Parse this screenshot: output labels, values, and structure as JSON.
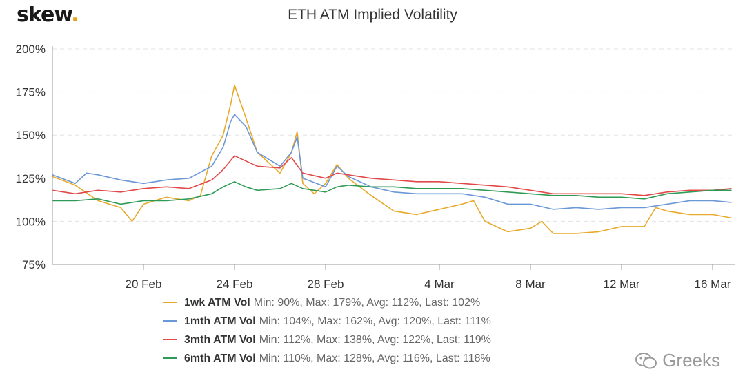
{
  "brand": {
    "name": "skew",
    "dot": "."
  },
  "watermark": {
    "text": "Greeks"
  },
  "chart_data": {
    "type": "line",
    "title": "ETH ATM Implied Volatility",
    "xlabel": "",
    "ylabel": "",
    "x_start": "2020-02-16",
    "x_end": "2020-03-17",
    "x_ticks": [
      {
        "date": "2020-02-20",
        "label": "20 Feb"
      },
      {
        "date": "2020-02-24",
        "label": "24 Feb"
      },
      {
        "date": "2020-02-28",
        "label": "28 Feb"
      },
      {
        "date": "2020-03-04",
        "label": "4 Mar"
      },
      {
        "date": "2020-03-08",
        "label": "8 Mar"
      },
      {
        "date": "2020-03-12",
        "label": "12 Mar"
      },
      {
        "date": "2020-03-16",
        "label": "16 Mar"
      }
    ],
    "y_ticks": [
      {
        "value": 75,
        "label": "75%"
      },
      {
        "value": 100,
        "label": "100%"
      },
      {
        "value": 125,
        "label": "125%"
      },
      {
        "value": 150,
        "label": "150%"
      },
      {
        "value": 175,
        "label": "175%"
      },
      {
        "value": 200,
        "label": "200%"
      }
    ],
    "ylim": [
      75,
      200
    ],
    "grid": true,
    "legend": "bottom",
    "series": [
      {
        "name": "1wk ATM Vol",
        "stats": "Min: 90%, Max: 179%, Avg: 112%, Last: 102%",
        "color": "#e8a92b",
        "points": [
          [
            "2020-02-16",
            126
          ],
          [
            "2020-02-17",
            121
          ],
          [
            "2020-02-18",
            112
          ],
          [
            "2020-02-19",
            108
          ],
          [
            "2020-02-19 12:00",
            100
          ],
          [
            "2020-02-20",
            110
          ],
          [
            "2020-02-21",
            114
          ],
          [
            "2020-02-22",
            112
          ],
          [
            "2020-02-22 12:00",
            115
          ],
          [
            "2020-02-23",
            138
          ],
          [
            "2020-02-23 12:00",
            150
          ],
          [
            "2020-02-23 20:00",
            168
          ],
          [
            "2020-02-24",
            179
          ],
          [
            "2020-02-24 12:00",
            160
          ],
          [
            "2020-02-25",
            140
          ],
          [
            "2020-02-25 12:00",
            134
          ],
          [
            "2020-02-26",
            128
          ],
          [
            "2020-02-26 12:00",
            140
          ],
          [
            "2020-02-26 18:00",
            152
          ],
          [
            "2020-02-27",
            122
          ],
          [
            "2020-02-27 12:00",
            116
          ],
          [
            "2020-02-28",
            122
          ],
          [
            "2020-02-28 12:00",
            133
          ],
          [
            "2020-02-29",
            125
          ],
          [
            "2020-03-01",
            115
          ],
          [
            "2020-03-02",
            106
          ],
          [
            "2020-03-03",
            104
          ],
          [
            "2020-03-04",
            107
          ],
          [
            "2020-03-05",
            110
          ],
          [
            "2020-03-05 12:00",
            112
          ],
          [
            "2020-03-06",
            100
          ],
          [
            "2020-03-07",
            94
          ],
          [
            "2020-03-08",
            96
          ],
          [
            "2020-03-08 12:00",
            100
          ],
          [
            "2020-03-09",
            93
          ],
          [
            "2020-03-10",
            93
          ],
          [
            "2020-03-11",
            94
          ],
          [
            "2020-03-12",
            97
          ],
          [
            "2020-03-13",
            97
          ],
          [
            "2020-03-13 12:00",
            108
          ],
          [
            "2020-03-14",
            106
          ],
          [
            "2020-03-15",
            104
          ],
          [
            "2020-03-16",
            104
          ],
          [
            "2020-03-16 20:00",
            102
          ]
        ]
      },
      {
        "name": "1mth ATM Vol",
        "stats": "Min: 104%, Max: 162%, Avg: 120%, Last: 111%",
        "color": "#6a97d6",
        "points": [
          [
            "2020-02-16",
            127
          ],
          [
            "2020-02-17",
            122
          ],
          [
            "2020-02-17 12:00",
            128
          ],
          [
            "2020-02-18",
            127
          ],
          [
            "2020-02-19",
            124
          ],
          [
            "2020-02-20",
            122
          ],
          [
            "2020-02-21",
            124
          ],
          [
            "2020-02-22",
            125
          ],
          [
            "2020-02-23",
            132
          ],
          [
            "2020-02-23 12:00",
            143
          ],
          [
            "2020-02-23 20:00",
            158
          ],
          [
            "2020-02-24",
            162
          ],
          [
            "2020-02-24 12:00",
            155
          ],
          [
            "2020-02-25",
            140
          ],
          [
            "2020-02-26",
            132
          ],
          [
            "2020-02-26 12:00",
            140
          ],
          [
            "2020-02-26 18:00",
            149
          ],
          [
            "2020-02-27",
            125
          ],
          [
            "2020-02-28",
            120
          ],
          [
            "2020-02-28 12:00",
            132
          ],
          [
            "2020-02-29",
            126
          ],
          [
            "2020-03-01",
            120
          ],
          [
            "2020-03-02",
            117
          ],
          [
            "2020-03-03",
            116
          ],
          [
            "2020-03-04",
            116
          ],
          [
            "2020-03-05",
            116
          ],
          [
            "2020-03-06",
            114
          ],
          [
            "2020-03-07",
            110
          ],
          [
            "2020-03-08",
            110
          ],
          [
            "2020-03-09",
            107
          ],
          [
            "2020-03-10",
            108
          ],
          [
            "2020-03-11",
            107
          ],
          [
            "2020-03-12",
            108
          ],
          [
            "2020-03-13",
            108
          ],
          [
            "2020-03-14",
            110
          ],
          [
            "2020-03-15",
            112
          ],
          [
            "2020-03-16",
            112
          ],
          [
            "2020-03-16 20:00",
            111
          ]
        ]
      },
      {
        "name": "3mth ATM Vol",
        "stats": "Min: 112%, Max: 138%, Avg: 122%, Last: 119%",
        "color": "#e24848",
        "points": [
          [
            "2020-02-16",
            118
          ],
          [
            "2020-02-17",
            116
          ],
          [
            "2020-02-18",
            118
          ],
          [
            "2020-02-19",
            117
          ],
          [
            "2020-02-20",
            119
          ],
          [
            "2020-02-21",
            120
          ],
          [
            "2020-02-22",
            119
          ],
          [
            "2020-02-23",
            124
          ],
          [
            "2020-02-23 12:00",
            130
          ],
          [
            "2020-02-24",
            138
          ],
          [
            "2020-02-24 12:00",
            135
          ],
          [
            "2020-02-25",
            132
          ],
          [
            "2020-02-26",
            131
          ],
          [
            "2020-02-26 12:00",
            137
          ],
          [
            "2020-02-27",
            128
          ],
          [
            "2020-02-28",
            125
          ],
          [
            "2020-02-28 12:00",
            128
          ],
          [
            "2020-02-29",
            127
          ],
          [
            "2020-03-01",
            125
          ],
          [
            "2020-03-02",
            124
          ],
          [
            "2020-03-03",
            123
          ],
          [
            "2020-03-04",
            123
          ],
          [
            "2020-03-05",
            122
          ],
          [
            "2020-03-06",
            121
          ],
          [
            "2020-03-07",
            120
          ],
          [
            "2020-03-08",
            118
          ],
          [
            "2020-03-09",
            116
          ],
          [
            "2020-03-10",
            116
          ],
          [
            "2020-03-11",
            116
          ],
          [
            "2020-03-12",
            116
          ],
          [
            "2020-03-13",
            115
          ],
          [
            "2020-03-14",
            117
          ],
          [
            "2020-03-15",
            118
          ],
          [
            "2020-03-16",
            118
          ],
          [
            "2020-03-16 20:00",
            119
          ]
        ]
      },
      {
        "name": "6mth ATM Vol",
        "stats": "Min: 110%, Max: 128%, Avg: 116%, Last: 118%",
        "color": "#2f9a55",
        "points": [
          [
            "2020-02-16",
            112
          ],
          [
            "2020-02-17",
            112
          ],
          [
            "2020-02-18",
            113
          ],
          [
            "2020-02-19",
            110
          ],
          [
            "2020-02-20",
            112
          ],
          [
            "2020-02-21",
            112
          ],
          [
            "2020-02-22",
            113
          ],
          [
            "2020-02-23",
            116
          ],
          [
            "2020-02-23 12:00",
            120
          ],
          [
            "2020-02-24",
            123
          ],
          [
            "2020-02-24 12:00",
            120
          ],
          [
            "2020-02-25",
            118
          ],
          [
            "2020-02-26",
            119
          ],
          [
            "2020-02-26 12:00",
            122
          ],
          [
            "2020-02-27",
            119
          ],
          [
            "2020-02-28",
            117
          ],
          [
            "2020-02-28 12:00",
            120
          ],
          [
            "2020-02-29",
            121
          ],
          [
            "2020-03-01",
            120
          ],
          [
            "2020-03-02",
            120
          ],
          [
            "2020-03-03",
            119
          ],
          [
            "2020-03-04",
            119
          ],
          [
            "2020-03-05",
            119
          ],
          [
            "2020-03-06",
            118
          ],
          [
            "2020-03-07",
            117
          ],
          [
            "2020-03-08",
            116
          ],
          [
            "2020-03-09",
            115
          ],
          [
            "2020-03-10",
            115
          ],
          [
            "2020-03-11",
            114
          ],
          [
            "2020-03-12",
            114
          ],
          [
            "2020-03-13",
            113
          ],
          [
            "2020-03-14",
            116
          ],
          [
            "2020-03-15",
            117
          ],
          [
            "2020-03-16",
            118
          ],
          [
            "2020-03-16 20:00",
            118
          ]
        ]
      }
    ]
  }
}
